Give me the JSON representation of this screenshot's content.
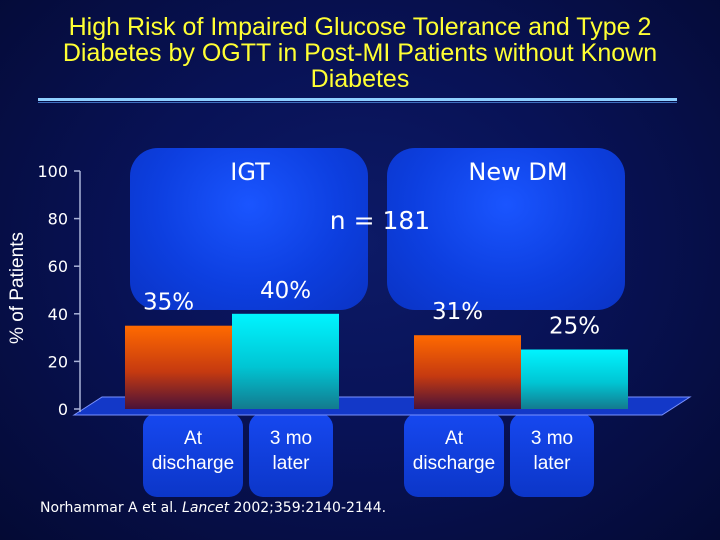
{
  "title": "High Risk of Impaired Glucose Tolerance and Type 2 Diabetes by OGTT in Post-MI Patients without Known Diabetes",
  "sample_size": "n = 181",
  "citation": {
    "before": "Norhammar A et al. ",
    "journal": "Lancet",
    "after": " 2002;359:2140-2144."
  },
  "colors": {
    "title": "#ffff33",
    "at_discharge_bar": "#ff6a00",
    "three_mo_later_bar": "#00f0ff",
    "panel": "#1a55ff"
  },
  "chart_data": {
    "type": "bar",
    "ylabel": "% of Patients",
    "ylim": [
      0,
      100
    ],
    "yticks": [
      "0",
      "20",
      "40",
      "60",
      "80",
      "100"
    ],
    "grid": false,
    "groups": [
      {
        "name": "IGT",
        "bars": [
          {
            "category": "At discharge",
            "value": 35,
            "label": "35%"
          },
          {
            "category": "3 mo later",
            "value": 40,
            "label": "40%"
          }
        ]
      },
      {
        "name": "New DM",
        "bars": [
          {
            "category": "At discharge",
            "value": 31,
            "label": "31%"
          },
          {
            "category": "3 mo later",
            "value": 25,
            "label": "25%"
          }
        ]
      }
    ],
    "category_labels": [
      {
        "line1": "At",
        "line2": "discharge"
      },
      {
        "line1": "3 mo",
        "line2": "later"
      },
      {
        "line1": "At",
        "line2": "discharge"
      },
      {
        "line1": "3 mo",
        "line2": "later"
      }
    ]
  }
}
